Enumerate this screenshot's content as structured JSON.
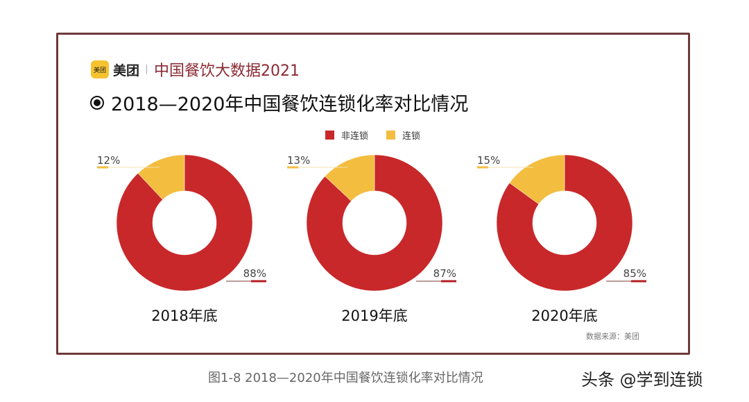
{
  "header": {
    "logo_text": "美团",
    "brand": "美团",
    "series_title": "中国餐饮大数据2021",
    "title": "2018—2020年中国餐饮连锁化率对比情况"
  },
  "chart_data": {
    "type": "pie",
    "variant": "donut",
    "title": "2018—2020年中国餐饮连锁化率对比情况",
    "legend": [
      "非连锁",
      "连锁"
    ],
    "legend_position": "top-center",
    "colors": {
      "非连锁": "#c8282a",
      "连锁": "#f3bd3f"
    },
    "charts": [
      {
        "label": "2018年底",
        "slices": [
          {
            "name": "非连锁",
            "value": 88,
            "label": "88%"
          },
          {
            "name": "连锁",
            "value": 12,
            "label": "12%"
          }
        ]
      },
      {
        "label": "2019年底",
        "slices": [
          {
            "name": "非连锁",
            "value": 87,
            "label": "87%"
          },
          {
            "name": "连锁",
            "value": 13,
            "label": "13%"
          }
        ]
      },
      {
        "label": "2020年底",
        "slices": [
          {
            "name": "非连锁",
            "value": 85,
            "label": "85%"
          },
          {
            "name": "连锁",
            "value": 15,
            "label": "15%"
          }
        ]
      }
    ]
  },
  "source": "数据来源：美团",
  "caption": "图1-8   2018—2020年中国餐饮连锁化率对比情况",
  "watermark": "头条 @学到连锁"
}
